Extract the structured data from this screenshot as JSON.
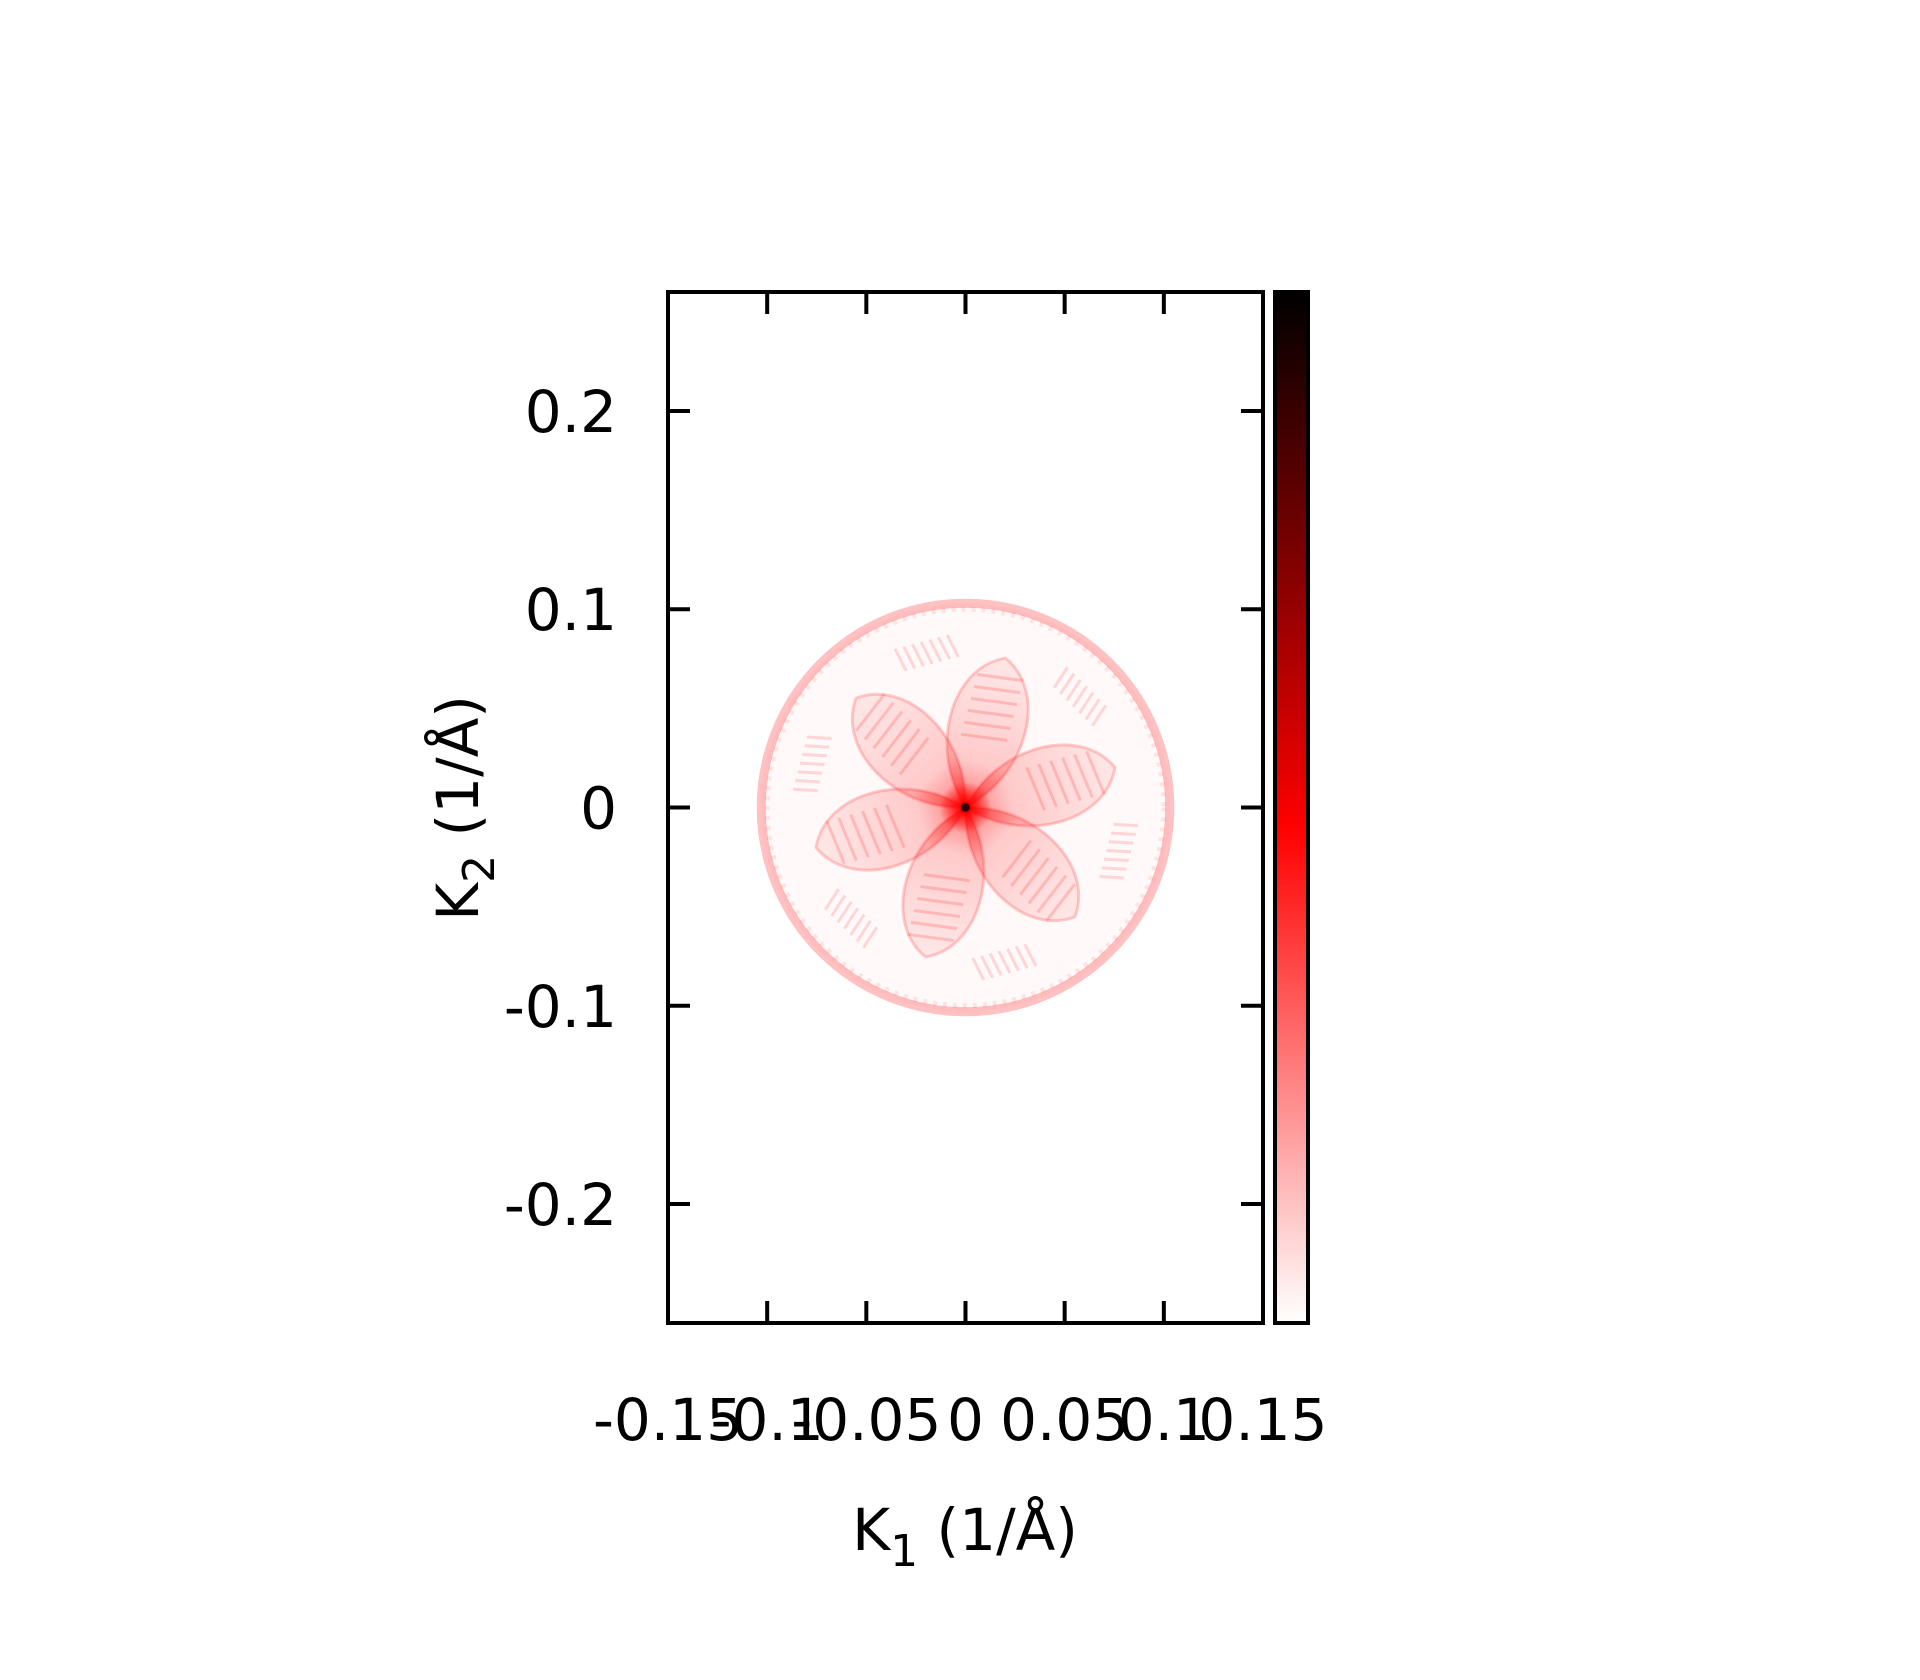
{
  "chart_data": {
    "type": "heatmap",
    "title": "",
    "xlabel": {
      "main": "K",
      "sub": "1",
      "unit": " (1/Å)"
    },
    "ylabel": {
      "main": "K",
      "sub": "2",
      "unit": " (1/Å)"
    },
    "xlim": [
      -0.15,
      0.15
    ],
    "ylim": [
      -0.26,
      0.26
    ],
    "xticks": [
      {
        "value": -0.15,
        "label": "-0.15"
      },
      {
        "value": -0.1,
        "label": "-0.1"
      },
      {
        "value": -0.05,
        "label": "-0.05"
      },
      {
        "value": 0,
        "label": "0"
      },
      {
        "value": 0.05,
        "label": "0.05"
      },
      {
        "value": 0.1,
        "label": "0.1"
      },
      {
        "value": 0.15,
        "label": "0.15"
      }
    ],
    "yticks": [
      {
        "value": -0.2,
        "label": "-0.2"
      },
      {
        "value": -0.1,
        "label": "-0.1"
      },
      {
        "value": 0,
        "label": "0"
      },
      {
        "value": 0.1,
        "label": "0.1"
      },
      {
        "value": 0.2,
        "label": "0.2"
      }
    ],
    "pattern": {
      "shape": "circle with six-petal rosette",
      "center": [
        0,
        0
      ],
      "radius": 0.103,
      "petals": 6,
      "petal_length": 0.078,
      "peak_at_center": true
    },
    "colorbar": {
      "colors": [
        "#ffffff",
        "#ff0000",
        "#000000"
      ],
      "stops": [
        0,
        0.48,
        1
      ],
      "tick_labels": []
    }
  }
}
